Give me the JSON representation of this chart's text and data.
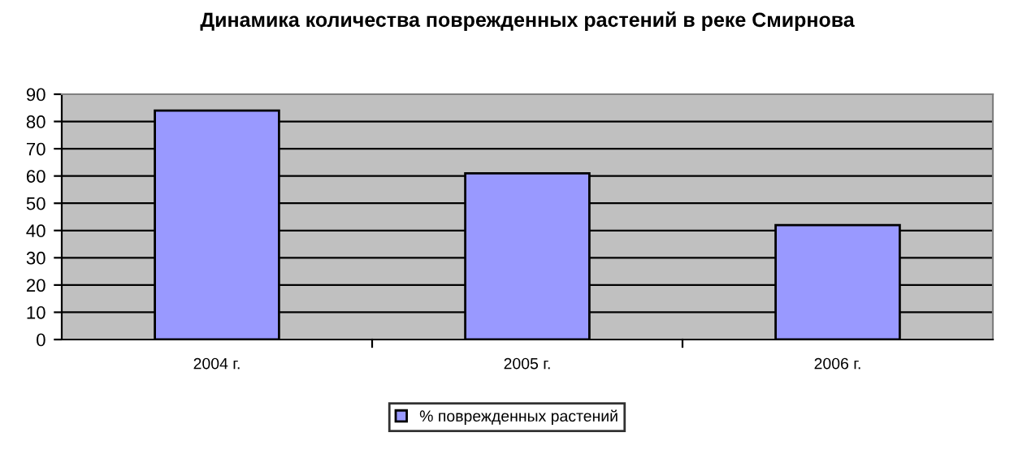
{
  "chart_data": {
    "type": "bar",
    "title": "Динамика количества поврежденных растений в реке Смирнова",
    "categories": [
      "2004 г.",
      "2005 г.",
      "2006 г."
    ],
    "series": [
      {
        "name": "% поврежденных растений",
        "color": "#9999ff",
        "values": [
          84,
          61,
          42
        ]
      }
    ],
    "ylim": [
      0,
      90
    ],
    "yticks": [
      0,
      10,
      20,
      30,
      40,
      50,
      60,
      70,
      80,
      90
    ],
    "grid": "y",
    "legend": "bottom"
  }
}
